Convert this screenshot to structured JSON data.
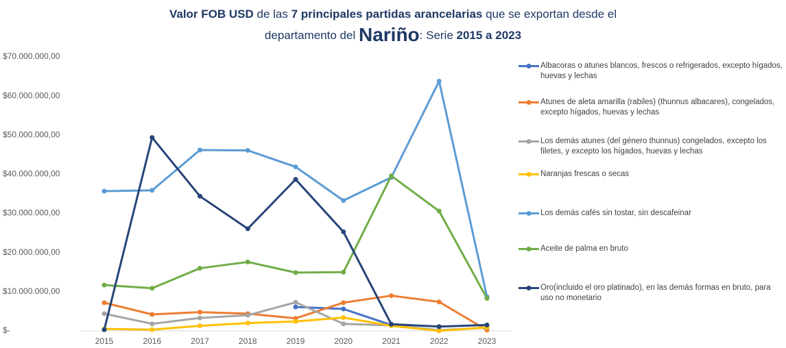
{
  "chart_data": {
    "type": "line",
    "title_lines": [
      [
        {
          "text": "Valor FOB USD",
          "bold": true
        },
        {
          "text": " de las "
        },
        {
          "text": "7 principales partidas arancelarias",
          "bold": true
        },
        {
          "text": " que se exportan desde el"
        }
      ],
      [
        {
          "text": "departamento del "
        },
        {
          "text": "Nariño",
          "bold": true,
          "large": true
        },
        {
          "text": ": Serie "
        },
        {
          "text": "2015 a 2023",
          "bold": true
        }
      ]
    ],
    "categories": [
      "2015",
      "2016",
      "2017",
      "2018",
      "2019",
      "2020",
      "2021",
      "2022",
      "2023"
    ],
    "ylim": [
      0,
      70000000
    ],
    "yticks": [
      {
        "value": 0,
        "label": "$-"
      },
      {
        "value": 10000000,
        "label": "$10.000.000,00"
      },
      {
        "value": 20000000,
        "label": "$20.000.000,00"
      },
      {
        "value": 30000000,
        "label": "$30.000.000,00"
      },
      {
        "value": 40000000,
        "label": "$40.000.000,00"
      },
      {
        "value": 50000000,
        "label": "$50.000.000,00"
      },
      {
        "value": 60000000,
        "label": "$60.000.000,00"
      },
      {
        "value": 70000000,
        "label": "$70.000.000,00"
      }
    ],
    "legend": "right",
    "series": [
      {
        "name": "Albacoras o atunes blancos, frescos o refrigerados, excepto hígados, huevas y lechas",
        "color": "#4472c4",
        "values": [
          null,
          null,
          null,
          null,
          6100000,
          5600000,
          1500000,
          null,
          null
        ]
      },
      {
        "name": "Atunes de aleta amarilla (rabiles) (thunnus albacares), congelados, excepto hígados, huevas y lechas",
        "color": "#ed7d31",
        "values": [
          7200000,
          4200000,
          4800000,
          4400000,
          3200000,
          7200000,
          9000000,
          7400000,
          200000
        ]
      },
      {
        "name": "Los demás atunes (del género thunnus) congelados, excepto los filetes, y excepto los hígados, huevas y lechas",
        "color": "#a5a5a5",
        "values": [
          4400000,
          1800000,
          3300000,
          4000000,
          7300000,
          1800000,
          1400000,
          200000,
          800000
        ]
      },
      {
        "name": "Naranjas frescas o secas",
        "color": "#ffc000",
        "values": [
          500000,
          300000,
          1300000,
          2000000,
          2400000,
          3400000,
          1300000,
          0,
          900000
        ]
      },
      {
        "name": "Los demás cafés sin tostar, sin descafeinar",
        "color": "#5b9bd5",
        "values": [
          35700000,
          35900000,
          46200000,
          46100000,
          41900000,
          33300000,
          39200000,
          63800000,
          8700000
        ]
      },
      {
        "name": "Aceite de palma en bruto",
        "color": "#70ad47",
        "values": [
          11700000,
          10900000,
          16000000,
          17600000,
          14900000,
          15000000,
          39600000,
          30600000,
          8300000
        ]
      },
      {
        "name": "Oro(incluido el oro platinado), en las demás formas en bruto, para uso no monetario",
        "color": "#264478",
        "values": [
          300000,
          49400000,
          34400000,
          26100000,
          38700000,
          25300000,
          1700000,
          1100000,
          1500000
        ]
      }
    ]
  }
}
